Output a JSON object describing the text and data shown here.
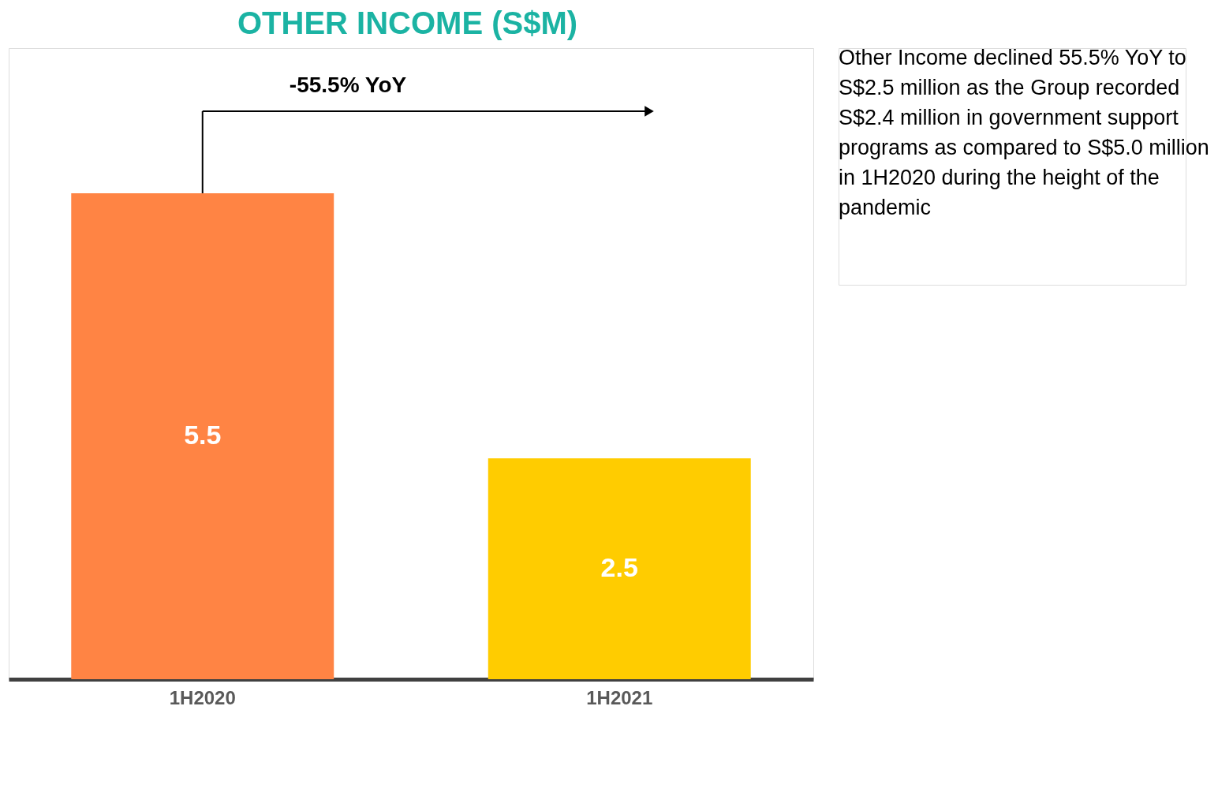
{
  "chart_data": {
    "type": "bar",
    "title": "OTHER INCOME (S$M)",
    "categories": [
      "1H2020",
      "1H2021"
    ],
    "values": [
      5.5,
      2.5
    ],
    "colors": [
      "#ff8444",
      "#ffcc00"
    ],
    "data_labels": true,
    "grid": false,
    "legend": false,
    "tick_labels": "x",
    "annotations": [
      "-55.5% YoY",
      "Other Income declined 55.5% YoY to S$2.5 million as the Group recorded S$2.4 million in government support programs as compared to S$5.0 million in 1H2020 during the height of the pandemic"
    ]
  }
}
